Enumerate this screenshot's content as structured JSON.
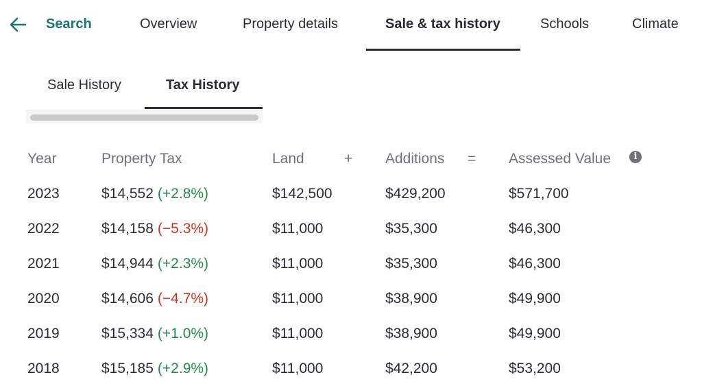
{
  "topnav": {
    "back_icon": "arrow-left-icon",
    "search_label": "Search",
    "tabs": [
      {
        "label": "Overview"
      },
      {
        "label": "Property details"
      },
      {
        "label": "Sale & tax history"
      },
      {
        "label": "Schools"
      },
      {
        "label": "Climate"
      }
    ],
    "active_tab": "Sale & tax history",
    "accent_color": "#1b7574"
  },
  "subtabs": {
    "items": [
      {
        "label": "Sale History"
      },
      {
        "label": "Tax History"
      }
    ],
    "active": "Tax History"
  },
  "tax_table": {
    "headers": {
      "year": "Year",
      "property_tax": "Property Tax",
      "land": "Land",
      "plus": "+",
      "additions": "Additions",
      "equals": "=",
      "assessed_value": "Assessed Value",
      "info_icon": "info-icon"
    },
    "rows": [
      {
        "year": "2023",
        "tax": "$14,552",
        "change": "(+2.8%)",
        "direction": "up",
        "land": "$142,500",
        "additions": "$429,200",
        "assessed": "$571,700"
      },
      {
        "year": "2022",
        "tax": "$14,158",
        "change": "(−5.3%)",
        "direction": "down",
        "land": "$11,000",
        "additions": "$35,300",
        "assessed": "$46,300"
      },
      {
        "year": "2021",
        "tax": "$14,944",
        "change": "(+2.3%)",
        "direction": "up",
        "land": "$11,000",
        "additions": "$35,300",
        "assessed": "$46,300"
      },
      {
        "year": "2020",
        "tax": "$14,606",
        "change": "(−4.7%)",
        "direction": "down",
        "land": "$11,000",
        "additions": "$38,900",
        "assessed": "$49,900"
      },
      {
        "year": "2019",
        "tax": "$15,334",
        "change": "(+1.0%)",
        "direction": "up",
        "land": "$11,000",
        "additions": "$38,900",
        "assessed": "$49,900"
      },
      {
        "year": "2018",
        "tax": "$15,185",
        "change": "(+2.9%)",
        "direction": "up",
        "land": "$11,000",
        "additions": "$42,200",
        "assessed": "$53,200"
      }
    ],
    "colors": {
      "up": "#1f8a47",
      "down": "#c8321e"
    }
  }
}
